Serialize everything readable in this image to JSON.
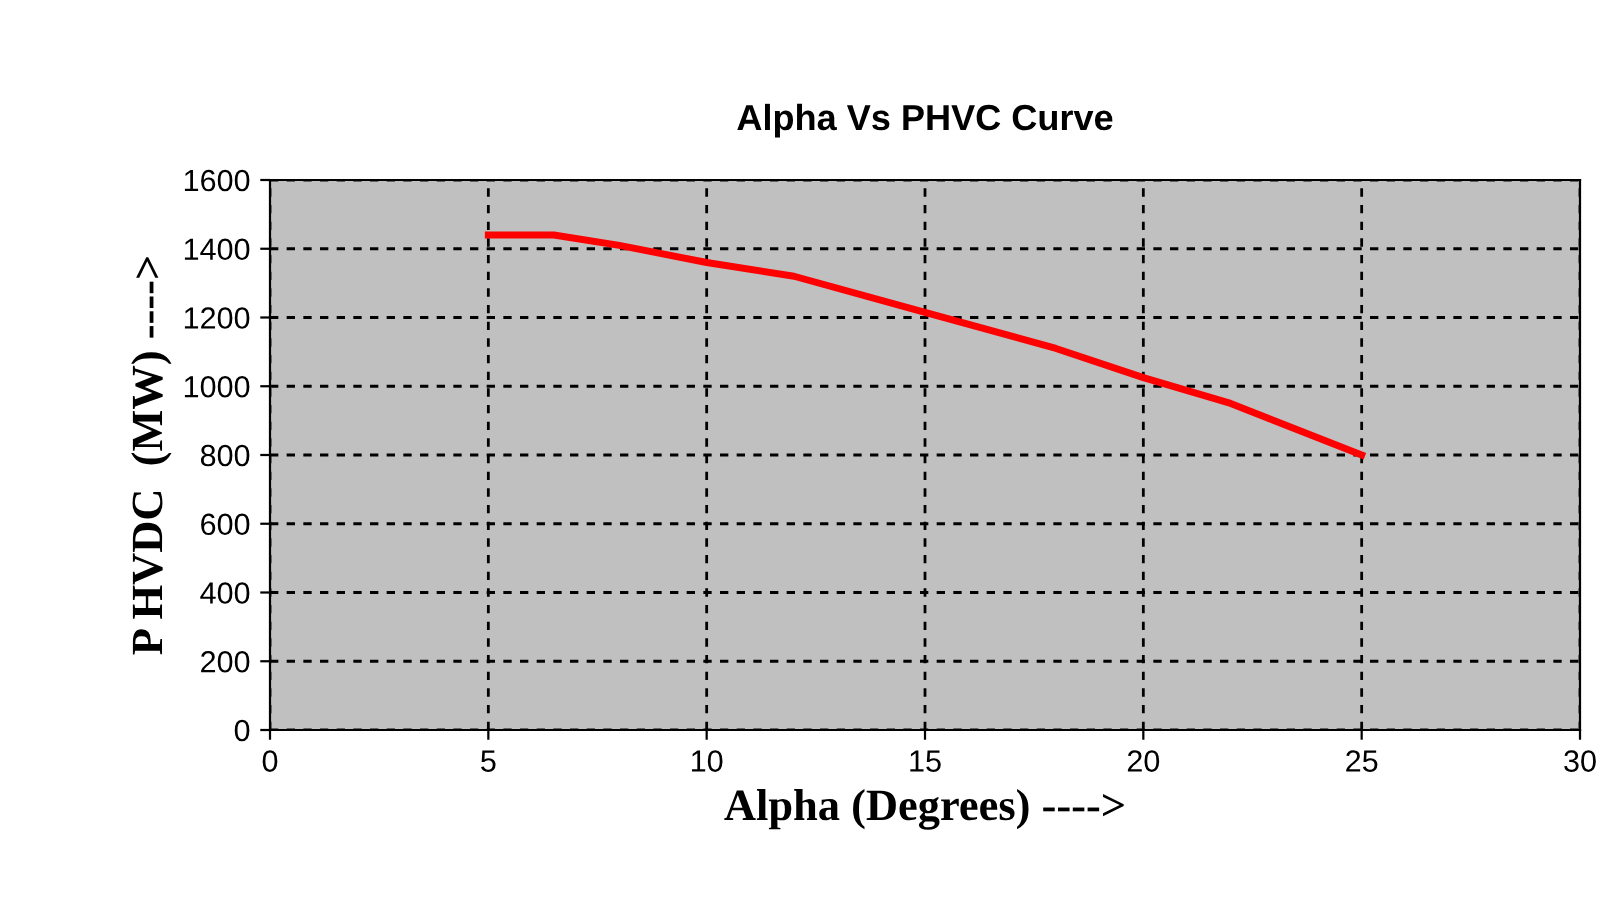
{
  "chart_data": {
    "type": "line",
    "title": "Alpha Vs PHVC Curve",
    "xlabel": "Alpha (Degrees) ---->",
    "ylabel": "P HVDC  (MW) ---->",
    "series": [
      {
        "color": "#ff0000",
        "x": [
          5,
          6.5,
          8,
          10,
          12,
          15,
          18,
          20,
          22,
          25
        ],
        "values": [
          1440,
          1440,
          1410,
          1360,
          1320,
          1215,
          1110,
          1025,
          950,
          800
        ]
      }
    ],
    "xlim": [
      0,
      30
    ],
    "xticks": [
      0,
      5,
      10,
      15,
      20,
      25,
      30
    ],
    "ylim": [
      0,
      1600
    ],
    "yticks": [
      0,
      200,
      400,
      600,
      800,
      1000,
      1200,
      1400,
      1600
    ],
    "grid": true,
    "marker": "none",
    "line_style": "solid"
  }
}
